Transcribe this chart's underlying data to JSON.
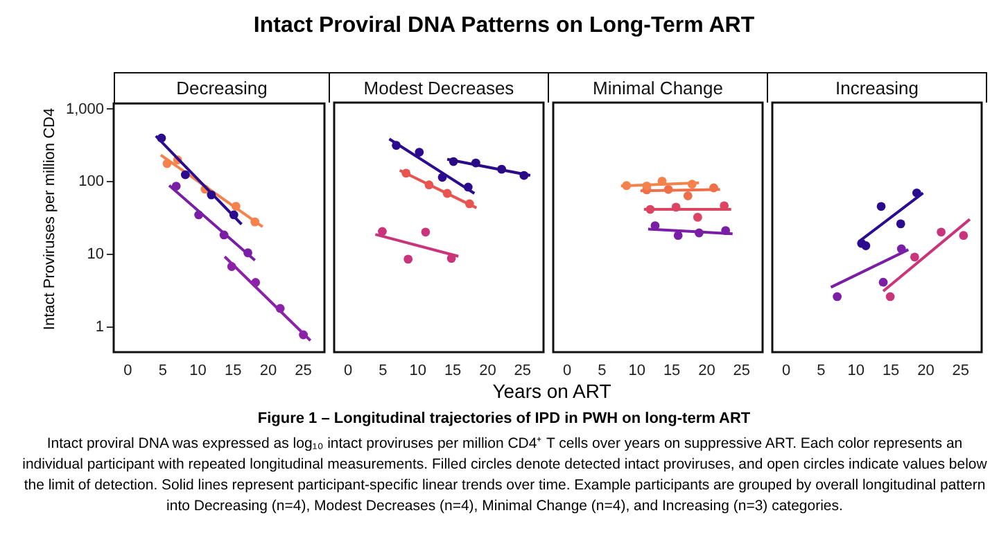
{
  "chart_data": [
    {
      "type": "scatter",
      "title": "Decreasing",
      "ylabel": "Intact Proviruses per million CD4",
      "log": true,
      "marker": "circle",
      "grid": false,
      "legend": false,
      "xlim": [
        -2,
        28
      ],
      "xticks": [
        0,
        5,
        10,
        15,
        20,
        25
      ],
      "ylim": [
        0.45,
        1200
      ],
      "yticks": [
        1,
        10,
        100,
        {
          "value": 1000,
          "label": "1,000"
        }
      ],
      "annotations": [
        "Intact Proviral DNA Patterns on Long-Term ART",
        "Figure 1 – Longitudinal trajectories of IPD in PWH on long-term ART",
        "Intact proviral DNA was expressed as log₁₀ intact proviruses per million CD4⁺ T cells over years on suppressive ART. Each color represents an individual participant with repeated longitudinal measurements. Filled circles denote detected intact proviruses, and open circles indicate values below the limit of detection. Solid lines represent participant-specific linear trends over time. Example participants are grouped by overall longitudinal pattern into Decreasing (n=4), Modest Decreases (n=4), Minimal Change (n=4), and Increasing (n=3) categories."
      ],
      "series": [
        {
          "type": "scatter",
          "color": "#2b0c8f",
          "x": [
            4.8,
            8.2,
            11.9,
            15.1
          ],
          "values": [
            400,
            125,
            66,
            35
          ]
        },
        {
          "type": "line",
          "marker": "none",
          "color": "#2b0c8f",
          "x": [
            4.0,
            16.2
          ],
          "values": [
            427,
            26
          ]
        },
        {
          "type": "scatter",
          "color": "#f5824c",
          "x": [
            5.6,
            7.1,
            11.0,
            15.4,
            18.1
          ],
          "values": [
            178,
            200,
            79,
            46,
            28
          ]
        },
        {
          "type": "line",
          "marker": "none",
          "color": "#f5824c",
          "x": [
            4.7,
            19.2
          ],
          "values": [
            234,
            24
          ]
        },
        {
          "type": "scatter",
          "color": "#7a1ea6",
          "x": [
            6.9,
            10.1,
            13.7,
            17.1
          ],
          "values": [
            87,
            35,
            18.5,
            10.5
          ]
        },
        {
          "type": "line",
          "marker": "none",
          "color": "#7a1ea6",
          "x": [
            5.9,
            18.1
          ],
          "values": [
            89,
            8.3
          ]
        },
        {
          "type": "scatter",
          "color": "#8b22a8",
          "x": [
            14.8,
            18.2,
            21.7,
            25.0
          ],
          "values": [
            6.8,
            4.1,
            1.8,
            0.78
          ]
        },
        {
          "type": "line",
          "marker": "none",
          "color": "#8b22a8",
          "x": [
            13.8,
            26.0
          ],
          "values": [
            9.3,
            0.65
          ]
        }
      ]
    },
    {
      "type": "scatter",
      "title": "Modest Decreases",
      "xlabel": "Years on ART",
      "log": true,
      "marker": "circle",
      "grid": false,
      "legend": false,
      "tick_labels": "x",
      "xlim": [
        -2,
        28
      ],
      "xticks": [
        0,
        5,
        10,
        15,
        20,
        25
      ],
      "ylim": [
        0.45,
        1200
      ],
      "yticks": [
        1,
        10,
        100,
        1000
      ],
      "series": [
        {
          "type": "scatter",
          "color": "#2b0c8f",
          "x": [
            6.9,
            10.2,
            13.5,
            17.2
          ],
          "values": [
            310,
            250,
            113,
            83
          ]
        },
        {
          "type": "line",
          "marker": "none",
          "color": "#2b0c8f",
          "x": [
            5.9,
            18.1
          ],
          "values": [
            380,
            68
          ]
        },
        {
          "type": "scatter",
          "color": "#2a0a86",
          "x": [
            15.1,
            18.3,
            22.0,
            25.2
          ],
          "values": [
            186,
            178,
            146,
            120
          ]
        },
        {
          "type": "line",
          "marker": "none",
          "color": "#2a0a86",
          "x": [
            14.2,
            26.1
          ],
          "values": [
            200,
            120
          ]
        },
        {
          "type": "scatter",
          "color": "#e8544f",
          "x": [
            8.3,
            11.6,
            14.2,
            17.4
          ],
          "values": [
            129,
            89,
            68,
            49
          ]
        },
        {
          "type": "line",
          "marker": "none",
          "color": "#e8544f",
          "x": [
            7.4,
            18.4
          ],
          "values": [
            141,
            43
          ]
        },
        {
          "type": "scatter",
          "color": "#c9347a",
          "x": [
            4.9,
            8.6,
            11.1,
            14.8
          ],
          "values": [
            20.4,
            8.5,
            20,
            8.7
          ]
        },
        {
          "type": "line",
          "marker": "none",
          "color": "#c9347a",
          "x": [
            3.9,
            15.8
          ],
          "values": [
            18.6,
            9.3
          ]
        }
      ]
    },
    {
      "type": "scatter",
      "title": "Minimal Change",
      "log": true,
      "marker": "circle",
      "grid": false,
      "legend": false,
      "tick_labels": "x",
      "xlim": [
        -2,
        28
      ],
      "xticks": [
        0,
        5,
        10,
        15,
        20,
        25
      ],
      "ylim": [
        0.45,
        1200
      ],
      "yticks": [
        1,
        10,
        100,
        1000
      ],
      "series": [
        {
          "type": "scatter",
          "color": "#f5824c",
          "x": [
            8.5,
            11.4,
            13.6,
            17.9
          ],
          "values": [
            87,
            86,
            100,
            91
          ]
        },
        {
          "type": "line",
          "marker": "none",
          "color": "#f5824c",
          "x": [
            7.7,
            18.9
          ],
          "values": [
            86,
            95
          ]
        },
        {
          "type": "scatter",
          "color": "#ef6f4a",
          "x": [
            11.4,
            14.5,
            17.3,
            21.0
          ],
          "values": [
            76,
            77,
            63,
            81
          ]
        },
        {
          "type": "line",
          "marker": "none",
          "color": "#ef6f4a",
          "x": [
            10.5,
            21.9
          ],
          "values": [
            74,
            77
          ]
        },
        {
          "type": "scatter",
          "color": "#dc4462",
          "x": [
            11.9,
            15.6,
            18.7,
            22.5
          ],
          "values": [
            41,
            44,
            32,
            46
          ]
        },
        {
          "type": "line",
          "marker": "none",
          "color": "#dc4462",
          "x": [
            11.0,
            23.5
          ],
          "values": [
            41,
            41
          ]
        },
        {
          "type": "scatter",
          "color": "#7a1ea6",
          "x": [
            12.6,
            15.9,
            18.9,
            22.7
          ],
          "values": [
            24.5,
            18,
            19.5,
            21
          ]
        },
        {
          "type": "line",
          "marker": "none",
          "color": "#7a1ea6",
          "x": [
            11.6,
            23.7
          ],
          "values": [
            22,
            19
          ]
        }
      ]
    },
    {
      "type": "scatter",
      "title": "Increasing",
      "log": true,
      "marker": "circle",
      "grid": false,
      "legend": false,
      "tick_labels": "x",
      "xlim": [
        -2,
        28
      ],
      "xticks": [
        0,
        5,
        10,
        15,
        20,
        25
      ],
      "ylim": [
        0.45,
        1200
      ],
      "yticks": [
        1,
        10,
        100,
        1000
      ],
      "series": [
        {
          "type": "scatter",
          "color": "#2b0c8f",
          "x": [
            10.8,
            11.4,
            13.6,
            16.4,
            18.7
          ],
          "values": [
            14,
            13,
            45,
            26,
            69
          ]
        },
        {
          "type": "line",
          "marker": "none",
          "color": "#2b0c8f",
          "x": [
            10.4,
            19.6
          ],
          "values": [
            14.8,
            69
          ]
        },
        {
          "type": "scatter",
          "color": "#7a1ea6",
          "x": [
            7.3,
            13.9,
            16.5
          ],
          "values": [
            2.6,
            4.1,
            11.8
          ]
        },
        {
          "type": "line",
          "marker": "none",
          "color": "#7a1ea6",
          "x": [
            6.4,
            17.5
          ],
          "values": [
            3.5,
            11.5
          ]
        },
        {
          "type": "scatter",
          "color": "#c9347a",
          "x": [
            14.9,
            18.4,
            22.2,
            25.4
          ],
          "values": [
            2.6,
            9.1,
            20,
            18
          ]
        },
        {
          "type": "line",
          "marker": "none",
          "color": "#c9347a",
          "x": [
            13.9,
            26.3
          ],
          "values": [
            3.1,
            30
          ]
        }
      ]
    }
  ]
}
